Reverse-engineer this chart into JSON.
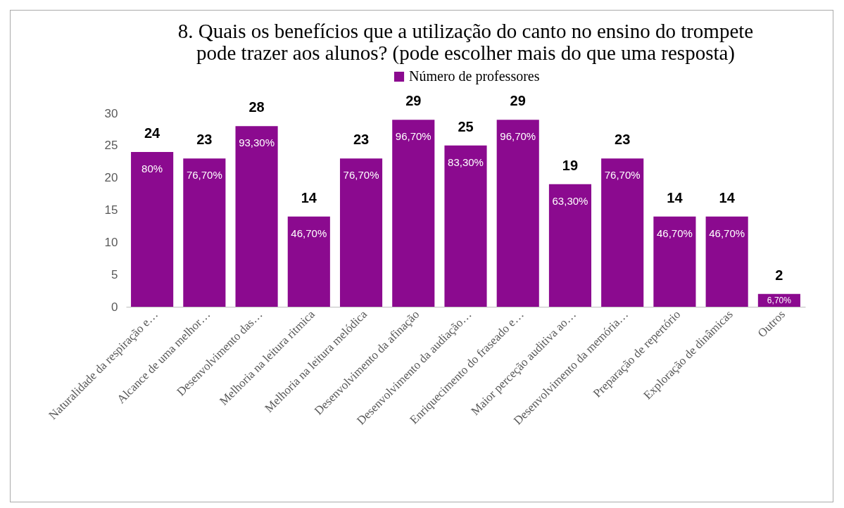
{
  "chart_data": {
    "type": "bar",
    "title": "8. Quais os benefícios que a utilização do canto no ensino do trompete\npode trazer aos alunos? (pode escolher mais do que uma resposta)",
    "categories": [
      "Naturalidade da respiração e…",
      "Alcance de uma melhor…",
      "Desenvolvimento das…",
      "Melhoria na leitura ritmica",
      "Melhoria na leitura melódica",
      "Desenvolvimento da afinação",
      "Desenvolvimento da audiação…",
      "Enriquecimento do fraseado e…",
      "Maior perceção auditiva ao…",
      "Desenvolvimento da memória…",
      "Preparação de repertório",
      "Exploração de dinâmicas",
      "Outros"
    ],
    "series": [
      {
        "name": "Número de professores",
        "color": "#8b0a8f",
        "values": [
          24,
          23,
          28,
          14,
          23,
          29,
          25,
          29,
          19,
          23,
          14,
          14,
          2
        ]
      }
    ],
    "annotations": [
      {
        "text": "80%",
        "x": "Naturalidade da respiração e…",
        "y": 24
      },
      {
        "text": "76,70%",
        "x": "Alcance de uma melhor…",
        "y": 23
      },
      {
        "text": "93,30%",
        "x": "Desenvolvimento das…",
        "y": 28
      },
      {
        "text": "46,70%",
        "x": "Melhoria na leitura ritmica",
        "y": 14
      },
      {
        "text": "76,70%",
        "x": "Melhoria na leitura melódica",
        "y": 23
      },
      {
        "text": "96,70%",
        "x": "Desenvolvimento da afinação",
        "y": 29
      },
      {
        "text": "83,30%",
        "x": "Desenvolvimento da audiação…",
        "y": 25
      },
      {
        "text": "96,70%",
        "x": "Enriquecimento do fraseado e…",
        "y": 29
      },
      {
        "text": "63,30%",
        "x": "Maior perceção auditiva ao…",
        "y": 19
      },
      {
        "text": "76,70%",
        "x": "Desenvolvimento da memória…",
        "y": 23
      },
      {
        "text": "46,70%",
        "x": "Preparação de repertório",
        "y": 14
      },
      {
        "text": "46,70%",
        "x": "Exploração de dinâmicas",
        "y": 14
      },
      {
        "text": "6,70%",
        "x": "Outros",
        "y": 2
      }
    ],
    "ylim": [
      0,
      30
    ],
    "yticks": [
      0,
      5,
      10,
      15,
      20,
      25,
      30
    ],
    "data_labels": true,
    "grid": false,
    "legend": "top"
  }
}
